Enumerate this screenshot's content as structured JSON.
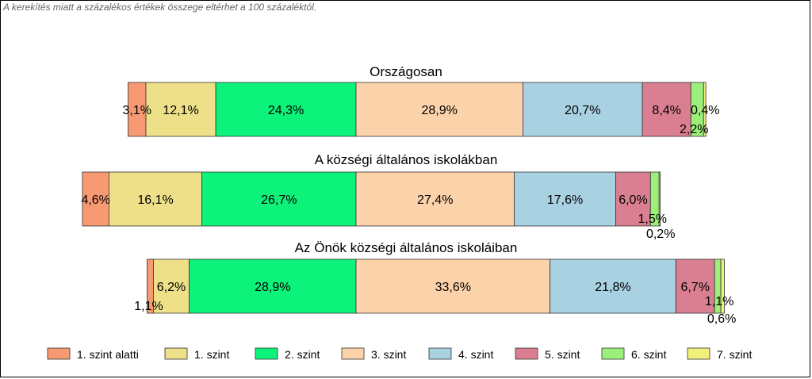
{
  "note": "A kerekítés miatt a  százalékos értékek összege eltérhet a 100 százaléktól.",
  "chart_data": {
    "type": "bar",
    "orientation": "horizontal",
    "stacked": true,
    "diverging": true,
    "xlabel": "",
    "ylabel": "",
    "grid": false,
    "legend_position": "bottom",
    "series": [
      {
        "name": "1. szint alatti",
        "color": "#F79A73"
      },
      {
        "name": "1. szint",
        "color": "#EDE089"
      },
      {
        "name": "2. szint",
        "color": "#0CF27A"
      },
      {
        "name": "3. szint",
        "color": "#FCD2AA"
      },
      {
        "name": "4. szint",
        "color": "#A8D1E2"
      },
      {
        "name": "5. szint",
        "color": "#D97F91"
      },
      {
        "name": "6. szint",
        "color": "#9CF07A"
      },
      {
        "name": "7. szint",
        "color": "#F1F07A"
      }
    ],
    "groups": [
      {
        "title": "Országosan",
        "values": [
          3.1,
          12.1,
          24.3,
          28.9,
          20.7,
          8.4,
          2.2,
          0.4
        ],
        "labels": [
          "3,1%",
          "12,1%",
          "24,3%",
          "28,9%",
          "20,7%",
          "8,4%",
          "2,2%",
          "0,4%"
        ]
      },
      {
        "title": "A községi általános iskolákban",
        "values": [
          4.6,
          16.1,
          26.7,
          27.4,
          17.6,
          6.0,
          1.5,
          0.2
        ],
        "labels": [
          "4,6%",
          "16,1%",
          "26,7%",
          "27,4%",
          "17,6%",
          "6,0%",
          "1,5%",
          "0,2%"
        ]
      },
      {
        "title": "Az Önök községi általános iskoláiban",
        "values": [
          1.1,
          6.2,
          28.9,
          33.6,
          21.8,
          6.7,
          1.1,
          0.6
        ],
        "labels": [
          "1,1%",
          "6,2%",
          "28,9%",
          "33,6%",
          "21,8%",
          "6,7%",
          "1,1%",
          "0,6%"
        ]
      }
    ]
  }
}
